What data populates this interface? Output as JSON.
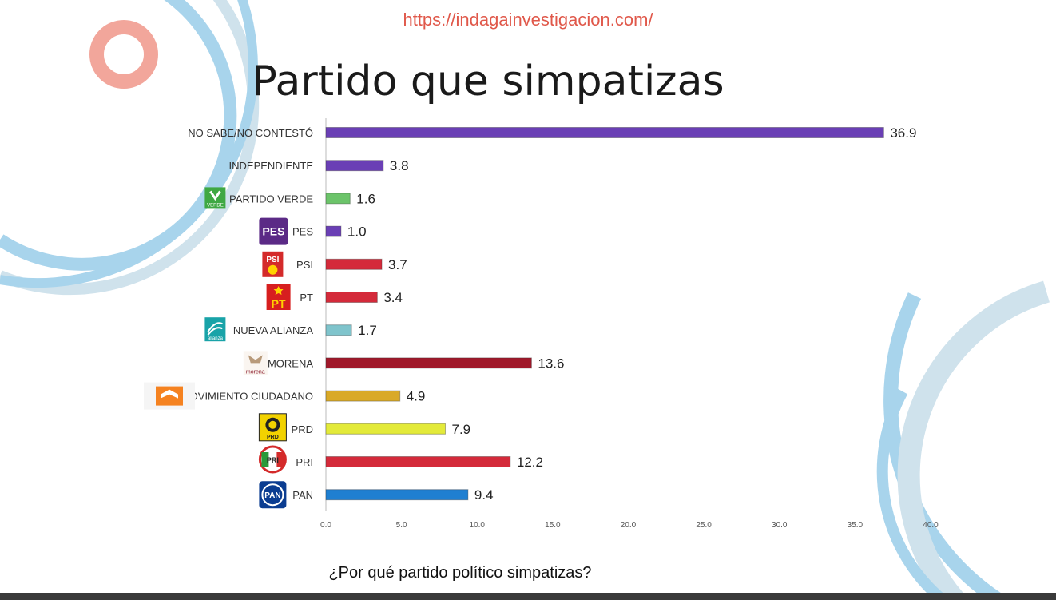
{
  "header": {
    "url": "https://indagainvestigacion.com/",
    "title": "Partido que simpatizas"
  },
  "footer": {
    "question": "¿Por qué partido político simpatizas?"
  },
  "colors": {
    "accent_red": "#e0584a",
    "deco_blue": "#a8d4ec",
    "deco_salmon": "#f2a69b"
  },
  "chart_data": {
    "type": "bar",
    "orientation": "horizontal",
    "title": "Partido que simpatizas",
    "xlabel": "",
    "ylabel": "",
    "xlim": [
      0,
      40
    ],
    "ticks": [
      "0.0",
      "5.0",
      "10.0",
      "15.0",
      "20.0",
      "25.0",
      "30.0",
      "35.0",
      "40.0"
    ],
    "categories": [
      {
        "label": "NO SABE/NO CONTESTÓ",
        "value": 36.9,
        "value_label": "36.9",
        "color": "#6a3fb5",
        "logo": null
      },
      {
        "label": "INDEPENDIENTE",
        "value": 3.8,
        "value_label": "3.8",
        "color": "#6a3fb5",
        "logo": null
      },
      {
        "label": "PARTIDO VERDE",
        "value": 1.6,
        "value_label": "1.6",
        "color": "#6cc46a",
        "logo": {
          "icon": "partido-verde-logo",
          "text": "VERDE",
          "color": "#3fa843"
        }
      },
      {
        "label": "PES",
        "value": 1.0,
        "value_label": "1.0",
        "color": "#6a3fb5",
        "logo": {
          "icon": "pes-logo",
          "text": "PES",
          "color": "#5b2a86"
        }
      },
      {
        "label": "PSI",
        "value": 3.7,
        "value_label": "3.7",
        "color": "#d42a3a",
        "logo": {
          "icon": "psi-logo",
          "text": "PSI",
          "color": "#d42a2a"
        }
      },
      {
        "label": "PT",
        "value": 3.4,
        "value_label": "3.4",
        "color": "#d42a3a",
        "logo": {
          "icon": "pt-logo",
          "text": "PT",
          "color": "#d71f1f"
        }
      },
      {
        "label": "NUEVA ALIANZA",
        "value": 1.7,
        "value_label": "1.7",
        "color": "#7fc4cc",
        "logo": {
          "icon": "nueva-alianza-logo",
          "text": "alianza",
          "color": "#19a3a8"
        }
      },
      {
        "label": "MORENA",
        "value": 13.6,
        "value_label": "13.6",
        "color": "#a0182a",
        "logo": {
          "icon": "morena-logo",
          "text": "morena",
          "color": "#8b1a2b"
        }
      },
      {
        "label": "MOVIMIENTO CIUDADANO",
        "value": 4.9,
        "value_label": "4.9",
        "color": "#d9a928",
        "logo": {
          "icon": "movimiento-ciudadano-logo",
          "text": "",
          "color": "#f58220"
        }
      },
      {
        "label": "PRD",
        "value": 7.9,
        "value_label": "7.9",
        "color": "#e3ea3a",
        "logo": {
          "icon": "prd-logo",
          "text": "PRD",
          "color": "#f2d200"
        }
      },
      {
        "label": "PRI",
        "value": 12.2,
        "value_label": "12.2",
        "color": "#d42a3a",
        "logo": {
          "icon": "pri-logo",
          "text": "PRI",
          "color": "#d42a2a"
        }
      },
      {
        "label": "PAN",
        "value": 9.4,
        "value_label": "9.4",
        "color": "#1f7fd1",
        "logo": {
          "icon": "pan-logo",
          "text": "PAN",
          "color": "#0b3d91"
        }
      }
    ]
  }
}
